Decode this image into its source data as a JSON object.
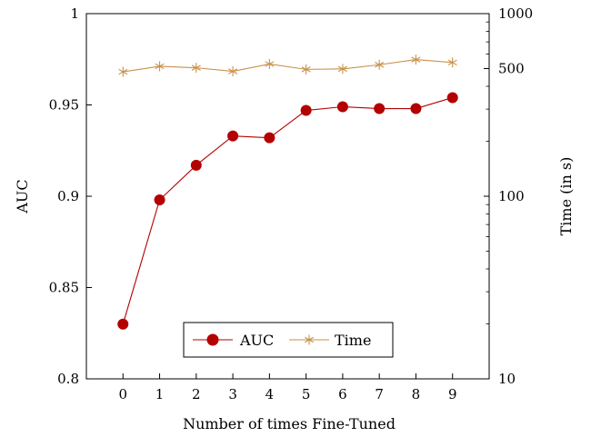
{
  "chart_data": {
    "type": "line",
    "xlabel": "Number of times Fine-Tuned",
    "ylabel_left": "AUC",
    "ylabel_right": "Time (in s)",
    "x": [
      0,
      1,
      2,
      3,
      4,
      5,
      6,
      7,
      8,
      9
    ],
    "x_ticks": [
      "0",
      "1",
      "2",
      "3",
      "4",
      "5",
      "6",
      "7",
      "8",
      "9"
    ],
    "xlim": [
      -1,
      10
    ],
    "ylim_left": [
      0.8,
      1.0
    ],
    "left_ticks": [
      0.8,
      0.85,
      0.9,
      0.95,
      1.0
    ],
    "left_tick_labels": [
      "0.8",
      "0.85",
      "0.9",
      "0.95",
      "1"
    ],
    "ylim_right": [
      10,
      1000
    ],
    "right_scale": "log",
    "right_ticks": [
      10,
      100,
      500,
      1000
    ],
    "right_tick_labels": [
      "10",
      "100",
      "500",
      "1000"
    ],
    "grid": false,
    "legend_position": "bottom-center",
    "series": [
      {
        "name": "AUC",
        "axis": "left",
        "marker": "circle",
        "color": "#b30000",
        "values": [
          0.83,
          0.898,
          0.917,
          0.933,
          0.932,
          0.947,
          0.949,
          0.948,
          0.948,
          0.954
        ]
      },
      {
        "name": "Time",
        "axis": "right",
        "marker": "star",
        "color": "#c8924a",
        "values": [
          480,
          515,
          505,
          483,
          530,
          495,
          498,
          525,
          560,
          540
        ]
      }
    ]
  }
}
